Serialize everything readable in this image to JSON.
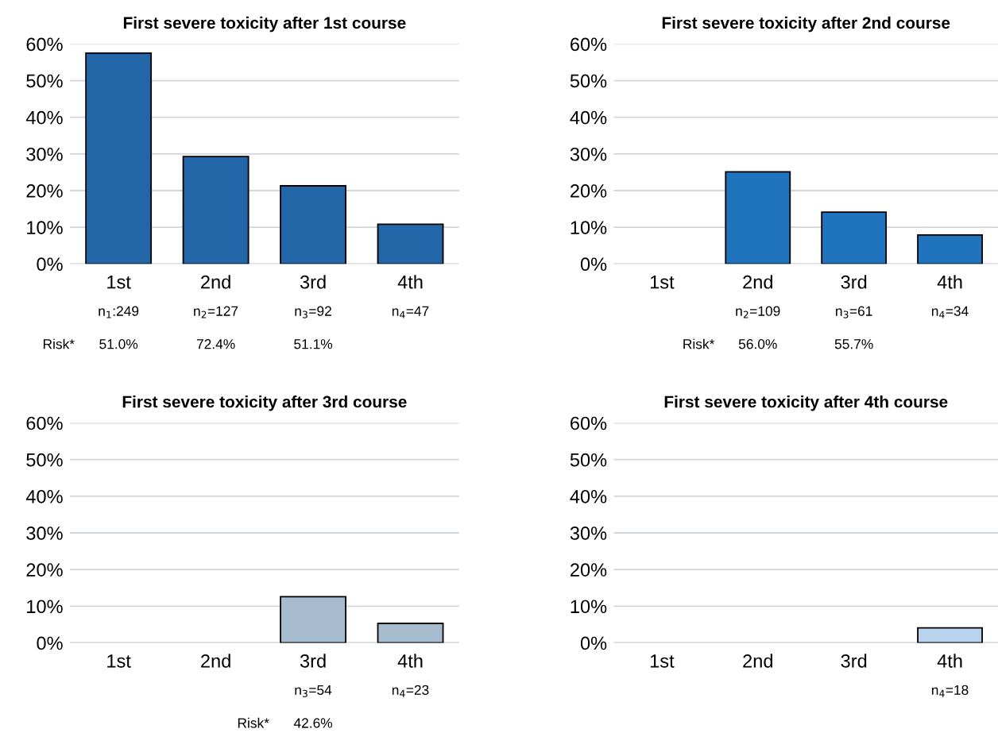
{
  "chart_data": [
    {
      "type": "bar",
      "title": "First severe toxicity after 1st course",
      "categories": [
        "1st",
        "2nd",
        "3rd",
        "4th"
      ],
      "values": [
        57.5,
        29.3,
        21.3,
        10.8
      ],
      "color": "#2366a8",
      "ylim": [
        0,
        60
      ],
      "yticks": [
        {
          "value": 0,
          "label": "0%"
        },
        {
          "value": 10,
          "label": "10%"
        },
        {
          "value": 20,
          "label": "20%"
        },
        {
          "value": 30,
          "label": "30%"
        },
        {
          "value": 40,
          "label": "40%"
        },
        {
          "value": 50,
          "label": "50%"
        },
        {
          "value": 60,
          "label": "60%"
        }
      ],
      "grid": "y",
      "annotations": [
        "n$_{1}$:249",
        "n$_{2}$=127",
        "n$_{3}$=92",
        "n$_{4}$=47",
        "Risk*",
        "51.0%",
        "72.4%",
        "51.1%"
      ]
    },
    {
      "type": "bar",
      "title": "First severe toxicity after 2nd course",
      "categories": [
        "1st",
        "2nd",
        "3rd",
        "4th"
      ],
      "values": [
        null,
        25.1,
        14.1,
        7.9
      ],
      "color": "#1f74bd",
      "ylim": [
        0,
        60
      ],
      "yticks": [
        {
          "value": 0,
          "label": "0%"
        },
        {
          "value": 10,
          "label": "10%"
        },
        {
          "value": 20,
          "label": "20%"
        },
        {
          "value": 30,
          "label": "30%"
        },
        {
          "value": 40,
          "label": "40%"
        },
        {
          "value": 50,
          "label": "50%"
        },
        {
          "value": 60,
          "label": "60%"
        }
      ],
      "grid": "y",
      "annotations": [
        "n$_{2}$=109",
        "n$_{3}$=61",
        "n$_{4}$=34",
        "Risk*",
        "56.0%",
        "55.7%"
      ]
    },
    {
      "type": "bar",
      "title": "First severe toxicity after 3rd course",
      "categories": [
        "1st",
        "2nd",
        "3rd",
        "4th"
      ],
      "values": [
        null,
        null,
        12.6,
        5.3
      ],
      "color": "#a7bccf",
      "ylim": [
        0,
        60
      ],
      "yticks": [
        {
          "value": 0,
          "label": "0%"
        },
        {
          "value": 10,
          "label": "10%"
        },
        {
          "value": 20,
          "label": "20%"
        },
        {
          "value": 30,
          "label": "30%"
        },
        {
          "value": 40,
          "label": "40%"
        },
        {
          "value": 50,
          "label": "50%"
        },
        {
          "value": 60,
          "label": "60%"
        }
      ],
      "grid": "y",
      "annotations": [
        "n$_{3}$=54",
        "n$_{4}$=23",
        "Risk*",
        "42.6%"
      ]
    },
    {
      "type": "bar",
      "title": "First severe toxicity after 4th course",
      "categories": [
        "1st",
        "2nd",
        "3rd",
        "4th"
      ],
      "values": [
        null,
        null,
        null,
        4.1
      ],
      "color": "#b9d2ee",
      "ylim": [
        0,
        60
      ],
      "yticks": [
        {
          "value": 0,
          "label": "0%"
        },
        {
          "value": 10,
          "label": "10%"
        },
        {
          "value": 20,
          "label": "20%"
        },
        {
          "value": 30,
          "label": "30%"
        },
        {
          "value": 40,
          "label": "40%"
        },
        {
          "value": 50,
          "label": "50%"
        },
        {
          "value": 60,
          "label": "60%"
        }
      ],
      "grid": "y",
      "annotations": [
        "n$_{4}$=18"
      ]
    }
  ]
}
